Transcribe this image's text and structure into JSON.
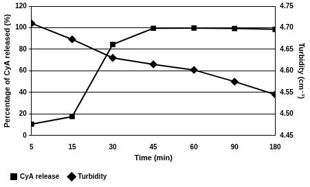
{
  "chart_data": {
    "type": "line",
    "x_label": "Time (min)",
    "y_label": "Percentage of CyA released (%)",
    "y2_label": "Turbidity (cm⁻¹)",
    "categories": [
      "5",
      "15",
      "30",
      "45",
      "60",
      "90",
      "180"
    ],
    "series": [
      {
        "name": "CyA release",
        "color": "#000000",
        "marker": "square",
        "axis": "y",
        "values": [
          10.5,
          17.5,
          84.5,
          99.5,
          99.7,
          99.3,
          98.5
        ]
      },
      {
        "name": "Turbidity",
        "color": "#000000",
        "marker": "diamond",
        "axis": "y2",
        "values": [
          4.71,
          4.673,
          4.63,
          4.615,
          4.602,
          4.575,
          4.545
        ]
      }
    ],
    "ylim": [
      0,
      120
    ],
    "yticks": [
      0,
      20,
      40,
      60,
      80,
      100,
      120
    ],
    "y2lim": [
      4.45,
      4.75
    ],
    "y2ticks": [
      4.45,
      {
        "value": 4.5,
        "label": "4.50"
      },
      4.55,
      {
        "value": 4.6,
        "label": "4.60"
      },
      4.65,
      {
        "value": 4.7,
        "label": "4.70"
      },
      4.75
    ],
    "grid": true,
    "legend": "bottom"
  }
}
